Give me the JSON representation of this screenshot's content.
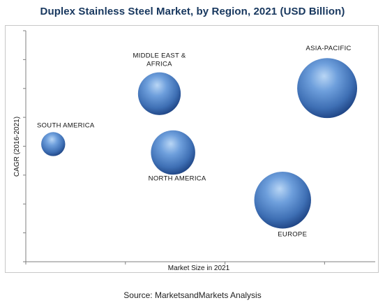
{
  "chart_data": {
    "type": "scatter",
    "title": "Duplex Stainless Steel Market, by Region, 2021 (USD Billion)",
    "xlabel": "Market Size in 2021",
    "ylabel": "CAGR (2016-2021)",
    "grid": false,
    "legend": "none",
    "source": "Source: MarketsandMarkets Analysis",
    "xlim": [
      0,
      10
    ],
    "ylim": [
      0,
      8
    ],
    "series": [
      {
        "points": [
          {
            "label": "SOUTH AMERICA",
            "x": 0.8,
            "y": 4.2,
            "size": 1.0
          },
          {
            "label": "MIDDLE EAST & AFRICA",
            "x": 3.9,
            "y": 6.0,
            "size": 2.2
          },
          {
            "label": "NORTH AMERICA",
            "x": 4.3,
            "y": 3.9,
            "size": 2.3
          },
          {
            "label": "EUROPE",
            "x": 7.5,
            "y": 2.2,
            "size": 3.1
          },
          {
            "label": "ASIA-PACIFIC",
            "x": 8.8,
            "y": 6.2,
            "size": 3.3
          }
        ]
      }
    ],
    "colors": {
      "bubble_light": "#9dc3ee",
      "bubble_mid": "#4a7fc2",
      "bubble_dark": "#1b3f7a",
      "title": "#17375e"
    }
  }
}
